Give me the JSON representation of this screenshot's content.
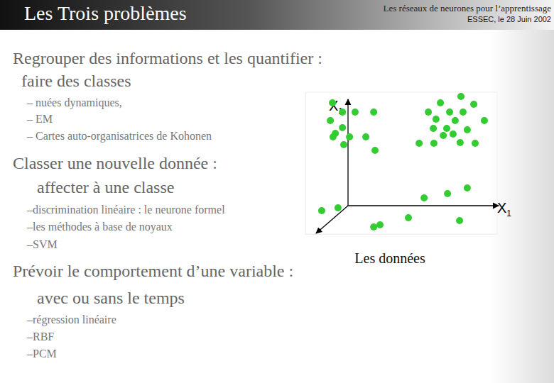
{
  "slide": {
    "title": "Les Trois problèmes",
    "header": [
      "Les réseaux de neurones pour l’apprentissage",
      "ESSEC, le 28 Juin 2002"
    ],
    "sections": [
      {
        "heading": [
          "Regrouper des informations et les quantifier :",
          "faire des classes"
        ],
        "items": [
          "– nuées dynamiques,",
          "– EM",
          "– Cartes auto-organisatrices de Kohonen"
        ]
      },
      {
        "heading": [
          "Classer une nouvelle donnée :",
          "affecter à une classe"
        ],
        "items": [
          "–discrimination linéaire : le neurone formel",
          "–les méthodes à base de noyaux",
          "–SVM"
        ]
      },
      {
        "heading": [
          "Prévoir le comportement d’une variable :",
          "avec ou sans le temps"
        ],
        "items": [
          "–régression linéaire",
          "–RBF",
          "–PCM"
        ]
      }
    ]
  },
  "chart_data": {
    "type": "scatter",
    "xlabel": "X1",
    "ylabel": "X1",
    "caption": "Les données",
    "x": [
      14.1,
      19.3,
      25.9,
      35.6,
      13.0,
      19.3,
      15.6,
      14.4,
      23.0,
      31.5,
      20.0,
      36.3,
      81.1,
      70.4,
      87.8,
      64.1,
      75.2,
      82.2,
      68.1,
      78.1,
      93.3,
      66.7,
      73.7,
      84.4,
      71.9,
      77.0,
      59.3,
      67.0,
      80.7,
      88.5,
      84.4,
      74.1,
      61.9,
      8.5,
      17.0,
      53.7,
      80.4,
      38.9,
      35.6
    ],
    "y": [
      92.5,
      86.0,
      86.0,
      86.0,
      80.0,
      75.0,
      71.0,
      68.5,
      68.5,
      68.5,
      63.0,
      59.0,
      97.0,
      92.5,
      91.5,
      86.0,
      86.0,
      86.0,
      81.0,
      80.0,
      80.0,
      74.5,
      74.5,
      73.5,
      69.5,
      70.5,
      64.0,
      64.0,
      64.5,
      64.0,
      32.5,
      28.5,
      25.5,
      16.5,
      18.5,
      11.5,
      9.5,
      6.5,
      5.0
    ],
    "xlim": [
      0,
      100
    ],
    "ylim": [
      0,
      100
    ],
    "xticks": [],
    "yticks": [],
    "tick_labels": false,
    "color": "#33cc33"
  }
}
